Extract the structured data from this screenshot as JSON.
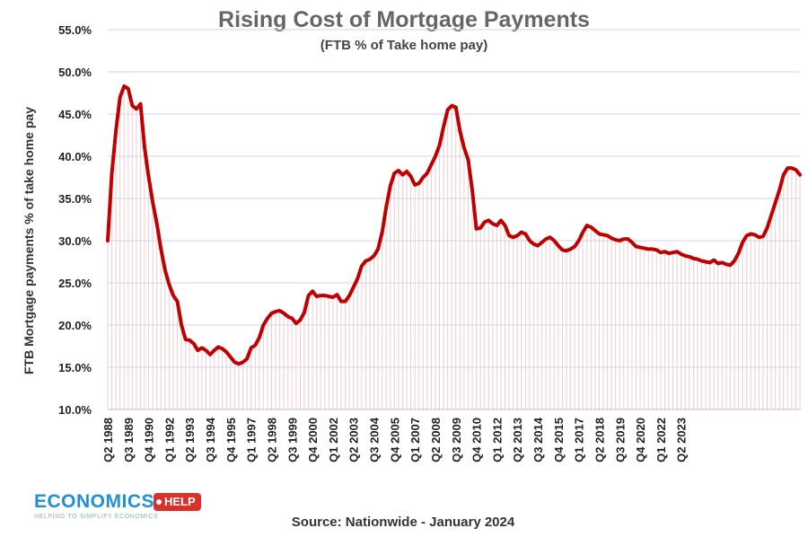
{
  "chart_data": {
    "type": "line",
    "title": "Rising Cost of Mortgage Payments",
    "subtitle": "(FTB % of Take home pay)",
    "ylabel": "FTB Mortgage payments % of take home pay",
    "xlabel": "",
    "ylim": [
      10,
      55
    ],
    "y_ticks": [
      "10.0%",
      "15.0%",
      "20.0%",
      "25.0%",
      "30.0%",
      "35.0%",
      "40.0%",
      "45.0%",
      "50.0%",
      "55.0%"
    ],
    "x_ticks": [
      "Q2 1988",
      "Q3 1989",
      "Q4 1990",
      "Q1 1992",
      "Q2 1993",
      "Q3 1994",
      "Q4 1995",
      "Q1 1997",
      "Q2 1998",
      "Q3 1999",
      "Q4 2000",
      "Q1 2002",
      "Q2 2003",
      "Q3 2004",
      "Q4 2005",
      "Q1 2007",
      "Q2 2008",
      "Q3 2009",
      "Q4 2010",
      "Q1 2012",
      "Q2 2013",
      "Q3 2014",
      "Q4 2015",
      "Q1 2017",
      "Q2 2018",
      "Q3 2019",
      "Q4 2020",
      "Q1 2022",
      "Q2 2023"
    ],
    "x_start": "Q2 1988",
    "x_end": "Q4 2023",
    "series": [
      {
        "color": "#c00000",
        "values": [
          30.0,
          38.0,
          43.0,
          47.0,
          48.3,
          48.0,
          46.0,
          45.6,
          46.2,
          41.0,
          37.5,
          34.5,
          32.0,
          29.0,
          26.5,
          24.8,
          23.5,
          22.8,
          20.0,
          18.3,
          18.2,
          17.8,
          17.0,
          17.3,
          17.0,
          16.5,
          17.0,
          17.4,
          17.2,
          16.8,
          16.2,
          15.6,
          15.4,
          15.6,
          16.0,
          17.3,
          17.6,
          18.5,
          20.0,
          20.8,
          21.4,
          21.6,
          21.7,
          21.4,
          21.0,
          20.8,
          20.2,
          20.6,
          21.5,
          23.5,
          24.0,
          23.4,
          23.5,
          23.5,
          23.4,
          23.3,
          23.6,
          22.8,
          22.8,
          23.5,
          24.5,
          25.5,
          27.0,
          27.6,
          27.8,
          28.2,
          29.0,
          31.0,
          34.0,
          36.5,
          38.0,
          38.3,
          37.8,
          38.2,
          37.6,
          36.6,
          36.8,
          37.5,
          38.0,
          39.0,
          40.0,
          41.3,
          43.5,
          45.5,
          46.0,
          45.8,
          43.0,
          41.0,
          39.6,
          36.0,
          31.4,
          31.5,
          32.2,
          32.4,
          32.0,
          31.8,
          32.4,
          31.8,
          30.6,
          30.4,
          30.6,
          31.0,
          30.8,
          30.0,
          29.6,
          29.4,
          29.8,
          30.2,
          30.4,
          30.0,
          29.4,
          28.9,
          28.8,
          29.0,
          29.3,
          30.0,
          31.0,
          31.8,
          31.6,
          31.2,
          30.8,
          30.7,
          30.6,
          30.3,
          30.1,
          30.0,
          30.2,
          30.2,
          29.8,
          29.3,
          29.2,
          29.1,
          29.0,
          29.0,
          28.9,
          28.6,
          28.7,
          28.5,
          28.6,
          28.7,
          28.4,
          28.2,
          28.1,
          27.9,
          27.8,
          27.6,
          27.5,
          27.4,
          27.7,
          27.3,
          27.4,
          27.2,
          27.1,
          27.6,
          28.5,
          29.8,
          30.6,
          30.8,
          30.7,
          30.4,
          30.5,
          31.5,
          33.0,
          34.5,
          36.0,
          37.8,
          38.6,
          38.6,
          38.4,
          37.8
        ]
      }
    ],
    "grid": true,
    "legend": "none",
    "source": "Source: Nationwide - January 2024"
  },
  "logo": {
    "word": "ECONOMICS",
    "badge": "HELP",
    "tagline": "HELPING TO SIMPLIFY ECONOMICS"
  }
}
